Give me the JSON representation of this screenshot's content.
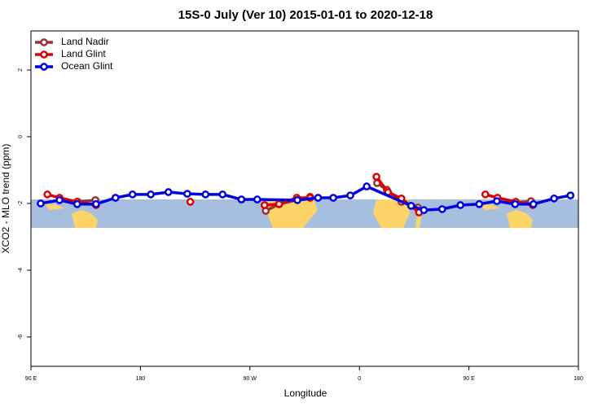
{
  "chart_data": {
    "type": "line",
    "title": "15S-0 July (Ver 10)   2015-01-01 to 2020-12-18",
    "x_label": "Longitude",
    "y_label": "XCO2 - MLO trend (ppm)",
    "xlim": [
      90,
      540
    ],
    "ylim": [
      -6.88,
      3.17
    ],
    "xticks": [
      {
        "value": 90,
        "label": "90 E"
      },
      {
        "value": 180,
        "label": "180"
      },
      {
        "value": 270,
        "label": "90 W"
      },
      {
        "value": 360,
        "label": "0"
      },
      {
        "value": 450,
        "label": "90 E"
      },
      {
        "value": 540,
        "label": "180"
      }
    ],
    "yticks": [
      -6,
      -4,
      -2,
      0,
      2
    ],
    "legend": "top-left",
    "series": [
      {
        "name": "Land Nadir",
        "color": "#993333",
        "x": [
          128.5,
          143,
          null,
          283,
          294,
          319.5,
          null,
          374.5,
          382.5,
          394.5,
          408,
          null,
          488.5,
          501
        ],
        "values": [
          -1.95,
          -1.9,
          null,
          -2.22,
          -2.02,
          -1.8,
          null,
          -1.39,
          -1.59,
          -1.95,
          -2.12,
          null,
          -1.98,
          -1.93
        ]
      },
      {
        "name": "Land Glint",
        "color": "#e00000",
        "x": [
          103.5,
          113.5,
          128,
          143.5,
          null,
          221,
          null,
          282,
          294,
          308.5,
          319.5,
          null,
          374,
          383.5,
          394.5,
          409,
          null,
          463.5,
          473.5,
          488.5,
          502.5
        ],
        "values": [
          -1.73,
          -1.83,
          -1.95,
          -2.05,
          null,
          -1.95,
          null,
          -2.05,
          -2.02,
          -1.83,
          -1.83,
          null,
          -1.2,
          -1.66,
          -1.85,
          -2.27,
          null,
          -1.73,
          -1.83,
          -1.95,
          -2.05
        ]
      },
      {
        "name": "Ocean Glint",
        "color": "#0000e0",
        "x": [
          98,
          113.5,
          128,
          143.5,
          159.5,
          173.5,
          188.5,
          203,
          218.5,
          233.5,
          247.5,
          263,
          276,
          309,
          326,
          338.5,
          352.5,
          366,
          402.5,
          413,
          428,
          443,
          458.5,
          473,
          488,
          503,
          520,
          533.5
        ],
        "values": [
          -2.0,
          -1.9,
          -2.02,
          -2.02,
          -1.83,
          -1.73,
          -1.73,
          -1.66,
          -1.71,
          -1.73,
          -1.73,
          -1.88,
          -1.88,
          -1.9,
          -1.83,
          -1.83,
          -1.76,
          -1.49,
          -2.07,
          -2.2,
          -2.17,
          -2.05,
          -2.02,
          -1.93,
          -2.02,
          -2.02,
          -1.85,
          -1.76
        ]
      }
    ]
  }
}
